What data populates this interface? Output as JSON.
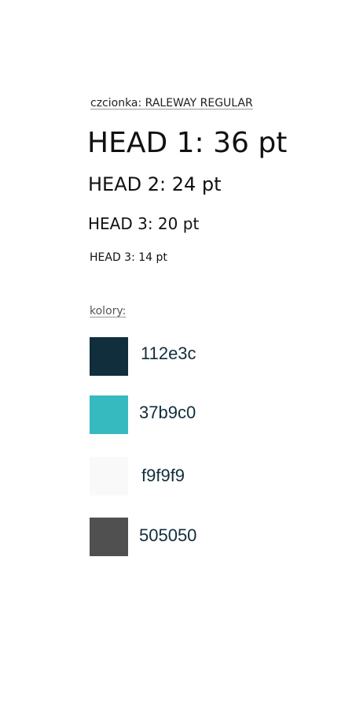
{
  "font_label": "czcionka: RALEWAY REGULAR",
  "headings": {
    "head1": "HEAD 1: 36 pt",
    "head2": "HEAD 2: 24 pt",
    "head3": "HEAD 3: 20 pt",
    "head4": "HEAD 3: 14 pt"
  },
  "colors_label": "kolory:",
  "colors": [
    {
      "hex": "112e3c",
      "color": "#112e3c"
    },
    {
      "hex": "37b9c0",
      "color": "#37b9c0"
    },
    {
      "hex": "f9f9f9",
      "color": "#f9f9f9"
    },
    {
      "hex": "505050",
      "color": "#505050"
    }
  ]
}
